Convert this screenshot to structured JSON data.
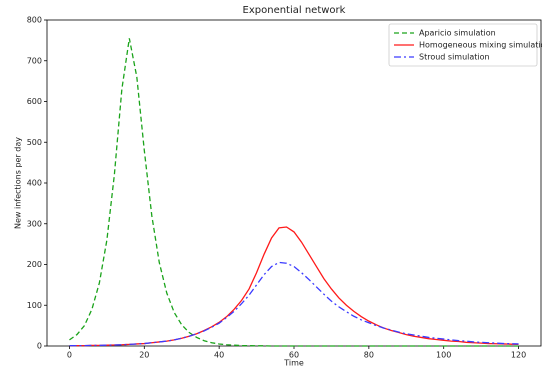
{
  "chart_data": {
    "type": "line",
    "title": "Exponential network",
    "xlabel": "Time",
    "ylabel": "New infections per day",
    "x": [
      0,
      2,
      4,
      6,
      8,
      10,
      12,
      14,
      16,
      18,
      20,
      22,
      24,
      26,
      28,
      30,
      32,
      34,
      36,
      38,
      40,
      42,
      44,
      46,
      48,
      50,
      52,
      54,
      56,
      58,
      60,
      62,
      64,
      66,
      68,
      70,
      72,
      74,
      76,
      78,
      80,
      82,
      84,
      86,
      88,
      90,
      92,
      94,
      96,
      98,
      100,
      102,
      104,
      106,
      108,
      110,
      112,
      114,
      116,
      118,
      120
    ],
    "series": [
      {
        "name": "Aparicio simulation",
        "color": "#1aa31a",
        "dash": "5,3",
        "values": [
          15,
          28,
          50,
          90,
          155,
          260,
          420,
          630,
          755,
          660,
          480,
          320,
          205,
          130,
          82,
          52,
          33,
          21,
          13,
          8,
          5,
          3,
          2,
          1,
          1,
          0.5,
          0.5,
          0,
          0,
          0,
          0,
          0,
          0,
          0,
          0,
          0,
          0,
          0,
          0,
          0,
          0,
          0,
          0,
          0,
          0,
          0,
          0,
          0,
          0,
          0,
          0,
          0,
          0,
          0,
          0,
          0,
          0,
          0,
          0,
          0,
          0
        ]
      },
      {
        "name": "Homogeneous mixing simulation",
        "color": "#ff1a1a",
        "dash": "none",
        "values": [
          1,
          1,
          1,
          1.5,
          1.5,
          2,
          2.5,
          3,
          4,
          5,
          6,
          8,
          10,
          12,
          15,
          19,
          24,
          30,
          38,
          47,
          58,
          72,
          90,
          112,
          140,
          180,
          225,
          265,
          290,
          292,
          280,
          255,
          225,
          195,
          165,
          140,
          118,
          100,
          85,
          72,
          61,
          52,
          44,
          38,
          33,
          28,
          24,
          21,
          18,
          16,
          14,
          12,
          11,
          9,
          8,
          7,
          6,
          5.5,
          5,
          4.5,
          4
        ]
      },
      {
        "name": "Stroud simulation",
        "color": "#3a3aff",
        "dash": "7,3,2,3",
        "values": [
          1,
          1,
          1,
          1.5,
          1.5,
          2,
          2.5,
          3,
          4,
          5,
          6,
          8,
          10,
          12,
          15,
          19,
          24,
          30,
          37,
          46,
          56,
          70,
          85,
          104,
          125,
          150,
          175,
          195,
          205,
          203,
          195,
          180,
          163,
          145,
          127,
          110,
          96,
          84,
          73,
          64,
          57,
          50,
          44,
          39,
          34,
          30,
          27,
          24,
          21,
          19,
          17,
          15,
          13,
          12,
          10,
          9,
          8,
          7,
          6,
          5.5,
          5
        ]
      }
    ],
    "xlim": [
      -6,
      126
    ],
    "ylim": [
      0,
      800
    ],
    "xticks": [
      0,
      20,
      40,
      60,
      80,
      100,
      120
    ],
    "yticks": [
      0,
      100,
      200,
      300,
      400,
      500,
      600,
      700,
      800
    ],
    "grid": false,
    "legend": "upper right"
  }
}
